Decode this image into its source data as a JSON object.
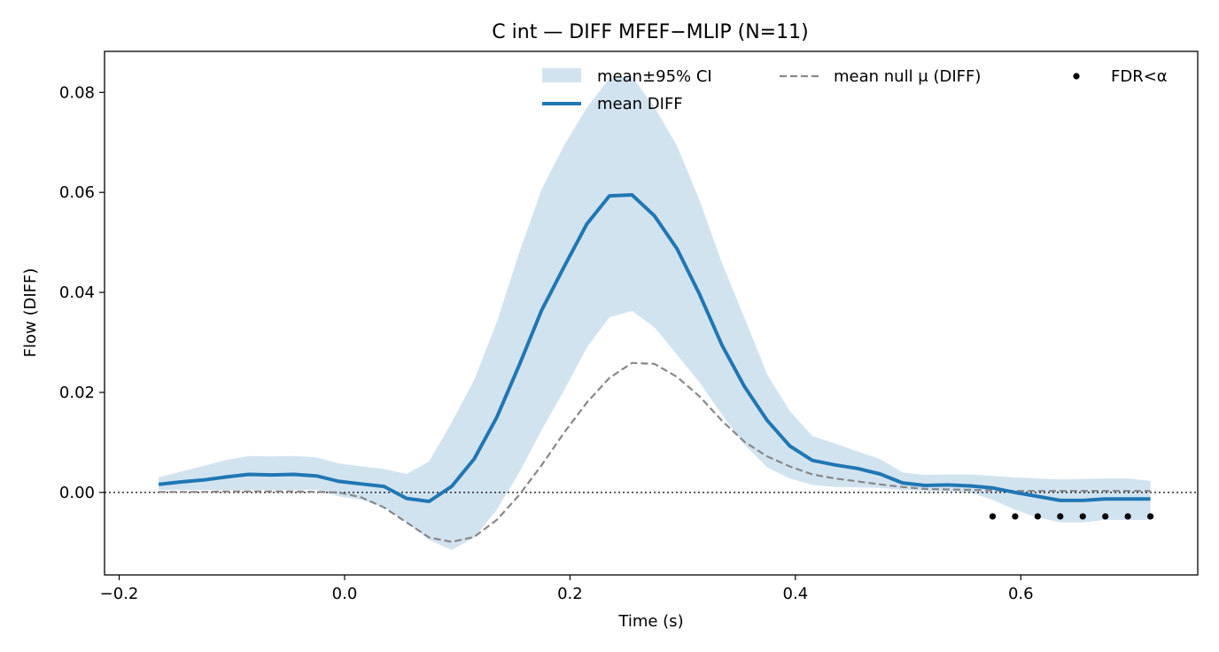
{
  "chart_data": {
    "type": "line",
    "title": "C int — DIFF MFEF−MLIP (N=11)",
    "xlabel": "Time (s)",
    "ylabel": "Flow (DIFF)",
    "xlim": [
      -0.213,
      0.757
    ],
    "ylim": [
      -0.0165,
      0.0882
    ],
    "xticks": [
      -0.2,
      0.0,
      0.2,
      0.4,
      0.6
    ],
    "xtick_labels": [
      "−0.2",
      "0.0",
      "0.2",
      "0.4",
      "0.6"
    ],
    "yticks": [
      0.0,
      0.02,
      0.04,
      0.06,
      0.08
    ],
    "ytick_labels": [
      "0.00",
      "0.02",
      "0.04",
      "0.06",
      "0.08"
    ],
    "grid": false,
    "zero_line": 0,
    "legend_placement": "top-right",
    "x": [
      -0.165,
      -0.145,
      -0.125,
      -0.105,
      -0.085,
      -0.065,
      -0.045,
      -0.025,
      -0.005,
      0.015,
      0.035,
      0.055,
      0.075,
      0.095,
      0.115,
      0.135,
      0.155,
      0.175,
      0.195,
      0.215,
      0.235,
      0.255,
      0.275,
      0.295,
      0.315,
      0.335,
      0.355,
      0.375,
      0.395,
      0.415,
      0.435,
      0.455,
      0.475,
      0.495,
      0.515,
      0.535,
      0.555,
      0.575,
      0.595,
      0.615,
      0.635,
      0.655,
      0.675,
      0.695,
      0.715
    ],
    "series": [
      {
        "name": "mean±95% CI",
        "kind": "band",
        "color": "#c7dcec",
        "lower": [
          0.0005,
          0.0005,
          0.0005,
          0.0005,
          0.0005,
          0.0005,
          0.0005,
          0.0005,
          -0.0008,
          -0.0015,
          -0.003,
          -0.006,
          -0.0095,
          -0.0115,
          -0.009,
          -0.0035,
          0.004,
          0.0125,
          0.0205,
          0.029,
          0.035,
          0.0363,
          0.033,
          0.0275,
          0.022,
          0.0155,
          0.0095,
          0.005,
          0.0028,
          0.0015,
          0.0011,
          0.001,
          0.0009,
          0.0005,
          0.0003,
          0.0002,
          0.0,
          -0.0015,
          -0.0035,
          -0.005,
          -0.006,
          -0.006,
          -0.0055,
          -0.0055,
          -0.0055
        ],
        "upper": [
          0.003,
          0.0042,
          0.0053,
          0.0065,
          0.0073,
          0.0072,
          0.0073,
          0.007,
          0.0058,
          0.0052,
          0.0047,
          0.0037,
          0.0062,
          0.014,
          0.0225,
          0.034,
          0.048,
          0.0607,
          0.0695,
          0.077,
          0.0828,
          0.0832,
          0.077,
          0.0693,
          0.0584,
          0.0458,
          0.0348,
          0.0236,
          0.0163,
          0.0113,
          0.0098,
          0.0082,
          0.0067,
          0.004,
          0.0035,
          0.0036,
          0.0036,
          0.0033,
          0.003,
          0.0028,
          0.0026,
          0.0027,
          0.0028,
          0.0028,
          0.0023
        ]
      },
      {
        "name": "mean DIFF",
        "kind": "line",
        "color": "#1f77b4",
        "values": [
          0.0016,
          0.0021,
          0.0025,
          0.0031,
          0.0036,
          0.0035,
          0.0036,
          0.0033,
          0.0022,
          0.0017,
          0.0012,
          -0.0012,
          -0.0018,
          0.0012,
          0.0067,
          0.015,
          0.0255,
          0.0365,
          0.0452,
          0.0537,
          0.0593,
          0.0595,
          0.0553,
          0.0487,
          0.0396,
          0.0294,
          0.0211,
          0.0144,
          0.0093,
          0.0064,
          0.0055,
          0.0048,
          0.0037,
          0.0019,
          0.0014,
          0.0015,
          0.0013,
          0.0009,
          0.0,
          -0.0008,
          -0.0016,
          -0.0016,
          -0.0013,
          -0.0013,
          -0.0013
        ]
      },
      {
        "name": "mean null μ (DIFF)",
        "kind": "dashed",
        "color": "#888888",
        "values": [
          0.0001,
          0.0001,
          0.0001,
          0.0002,
          0.0002,
          0.0002,
          0.0002,
          0.0001,
          0.0,
          -0.001,
          -0.003,
          -0.006,
          -0.009,
          -0.0099,
          -0.0089,
          -0.0055,
          -0.0005,
          0.0055,
          0.012,
          0.018,
          0.0229,
          0.0259,
          0.0257,
          0.0231,
          0.0192,
          0.0143,
          0.0101,
          0.0072,
          0.0052,
          0.0036,
          0.0028,
          0.0022,
          0.0016,
          0.0011,
          0.0007,
          0.0006,
          0.0005,
          0.0004,
          0.0003,
          0.0003,
          0.0003,
          0.0003,
          0.0003,
          0.0003,
          0.0003
        ]
      },
      {
        "name": "FDR<α",
        "kind": "markers",
        "color": "#000000",
        "x": [
          0.575,
          0.595,
          0.615,
          0.635,
          0.655,
          0.675,
          0.695,
          0.715
        ],
        "y": [
          -0.0048,
          -0.0048,
          -0.0048,
          -0.0048,
          -0.0048,
          -0.0048,
          -0.0048,
          -0.0048
        ]
      }
    ]
  }
}
